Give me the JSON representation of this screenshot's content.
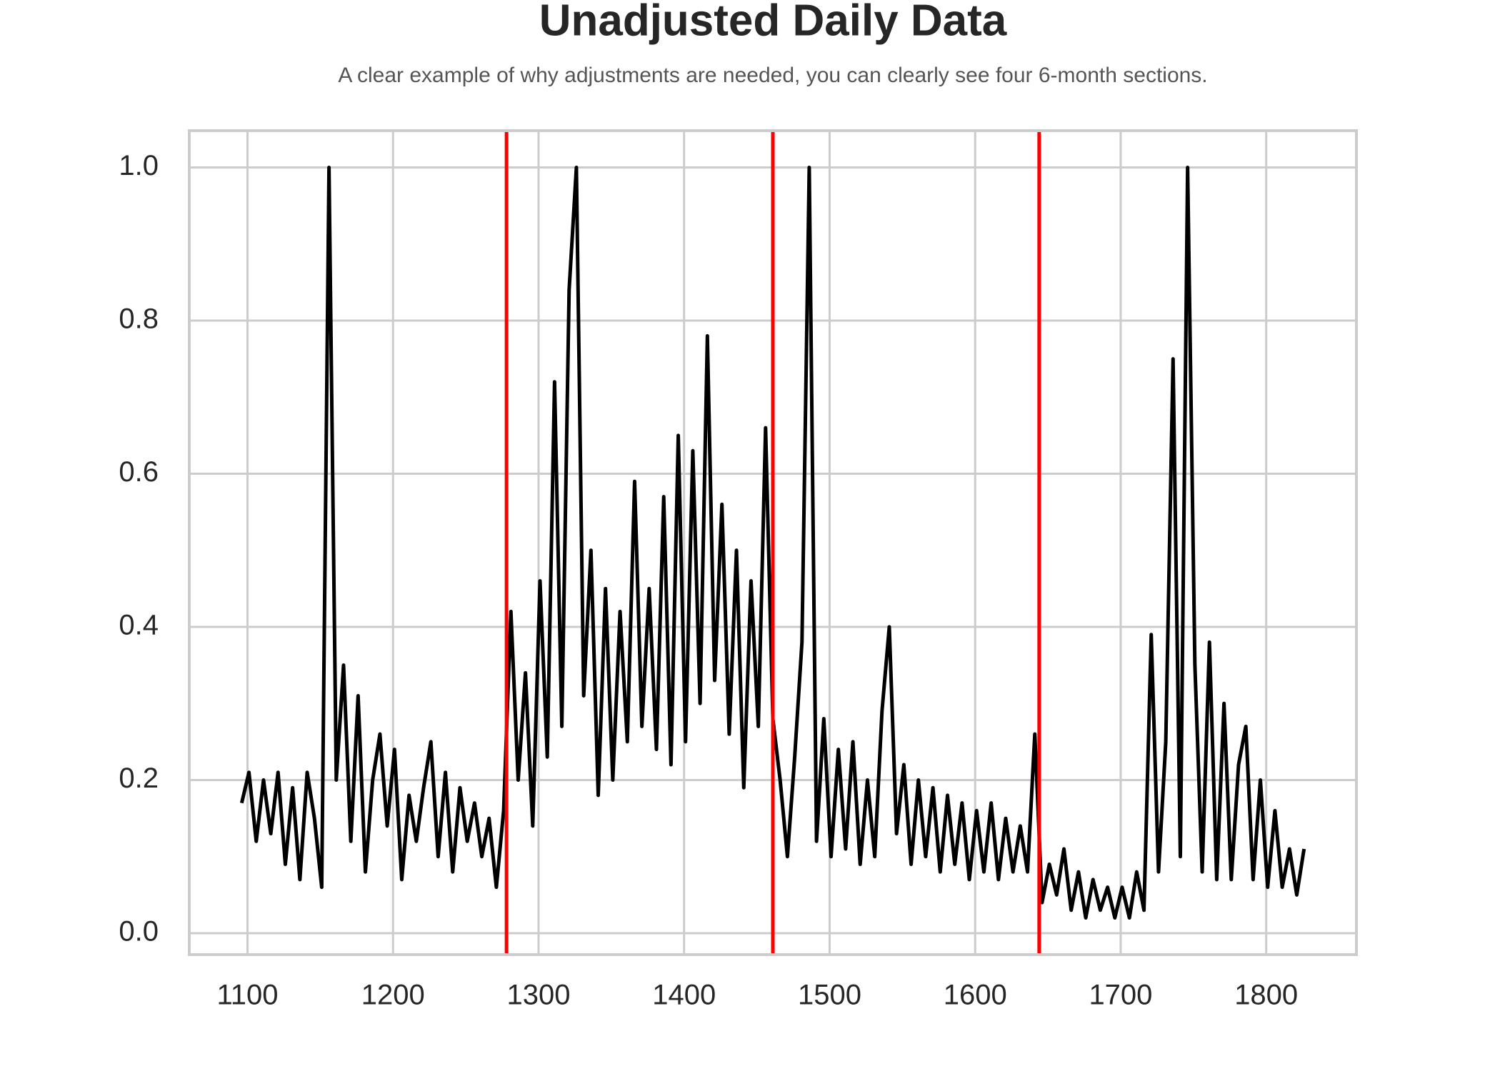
{
  "chart_data": {
    "type": "line",
    "title": "Unadjusted Daily Data",
    "subtitle": "A clear example of why adjustments are needed, you can clearly see four 6-month sections.",
    "x": [
      1096,
      1101,
      1106,
      1111,
      1116,
      1121,
      1126,
      1131,
      1136,
      1141,
      1146,
      1151,
      1156,
      1161,
      1166,
      1171,
      1176,
      1181,
      1186,
      1191,
      1196,
      1201,
      1206,
      1211,
      1216,
      1221,
      1226,
      1231,
      1236,
      1241,
      1246,
      1251,
      1256,
      1261,
      1266,
      1271,
      1276,
      1281,
      1286,
      1291,
      1296,
      1301,
      1306,
      1311,
      1316,
      1321,
      1326,
      1331,
      1336,
      1341,
      1346,
      1351,
      1356,
      1361,
      1366,
      1371,
      1376,
      1381,
      1386,
      1391,
      1396,
      1401,
      1406,
      1411,
      1416,
      1421,
      1426,
      1431,
      1436,
      1441,
      1446,
      1451,
      1456,
      1461,
      1466,
      1471,
      1476,
      1481,
      1486,
      1491,
      1496,
      1501,
      1506,
      1511,
      1516,
      1521,
      1526,
      1531,
      1536,
      1541,
      1546,
      1551,
      1556,
      1561,
      1566,
      1571,
      1576,
      1581,
      1586,
      1591,
      1596,
      1601,
      1606,
      1611,
      1616,
      1621,
      1626,
      1631,
      1636,
      1641,
      1646,
      1651,
      1656,
      1661,
      1666,
      1671,
      1676,
      1681,
      1686,
      1691,
      1696,
      1701,
      1706,
      1711,
      1716,
      1721,
      1726,
      1731,
      1736,
      1741,
      1746,
      1751,
      1756,
      1761,
      1766,
      1771,
      1776,
      1781,
      1786,
      1791,
      1796,
      1801,
      1806,
      1811,
      1816,
      1821,
      1826
    ],
    "values": [
      0.17,
      0.21,
      0.12,
      0.2,
      0.13,
      0.21,
      0.09,
      0.19,
      0.07,
      0.21,
      0.15,
      0.06,
      1.0,
      0.2,
      0.35,
      0.12,
      0.31,
      0.08,
      0.2,
      0.26,
      0.14,
      0.24,
      0.07,
      0.18,
      0.12,
      0.19,
      0.25,
      0.1,
      0.21,
      0.08,
      0.19,
      0.12,
      0.17,
      0.1,
      0.15,
      0.06,
      0.16,
      0.42,
      0.2,
      0.34,
      0.14,
      0.46,
      0.23,
      0.72,
      0.27,
      0.84,
      1.0,
      0.31,
      0.5,
      0.18,
      0.45,
      0.2,
      0.42,
      0.25,
      0.59,
      0.27,
      0.45,
      0.24,
      0.57,
      0.22,
      0.65,
      0.25,
      0.63,
      0.3,
      0.78,
      0.33,
      0.56,
      0.26,
      0.5,
      0.19,
      0.46,
      0.27,
      0.66,
      0.28,
      0.2,
      0.1,
      0.23,
      0.38,
      1.0,
      0.12,
      0.28,
      0.1,
      0.24,
      0.11,
      0.25,
      0.09,
      0.2,
      0.1,
      0.29,
      0.4,
      0.13,
      0.22,
      0.09,
      0.2,
      0.1,
      0.19,
      0.08,
      0.18,
      0.09,
      0.17,
      0.07,
      0.16,
      0.08,
      0.17,
      0.07,
      0.15,
      0.08,
      0.14,
      0.08,
      0.26,
      0.04,
      0.09,
      0.05,
      0.11,
      0.03,
      0.08,
      0.02,
      0.07,
      0.03,
      0.06,
      0.02,
      0.06,
      0.02,
      0.08,
      0.03,
      0.39,
      0.08,
      0.25,
      0.75,
      0.1,
      1.0,
      0.35,
      0.08,
      0.38,
      0.07,
      0.3,
      0.07,
      0.22,
      0.27,
      0.07,
      0.2,
      0.06,
      0.16,
      0.06,
      0.11,
      0.05,
      0.11
    ],
    "color": "#000000",
    "vlines": {
      "x": [
        1278,
        1461,
        1644
      ],
      "color": "#ff0000"
    },
    "xlim": [
      1060,
      1862
    ],
    "xticks": [
      1100,
      1200,
      1300,
      1400,
      1500,
      1600,
      1700,
      1800
    ],
    "ylim": [
      -0.028,
      1.048
    ],
    "yticks": [
      {
        "value": 0,
        "label": "0.0"
      },
      0.2,
      0.4,
      0.6,
      0.8,
      {
        "value": 1,
        "label": "1.0"
      }
    ],
    "grid": true
  }
}
